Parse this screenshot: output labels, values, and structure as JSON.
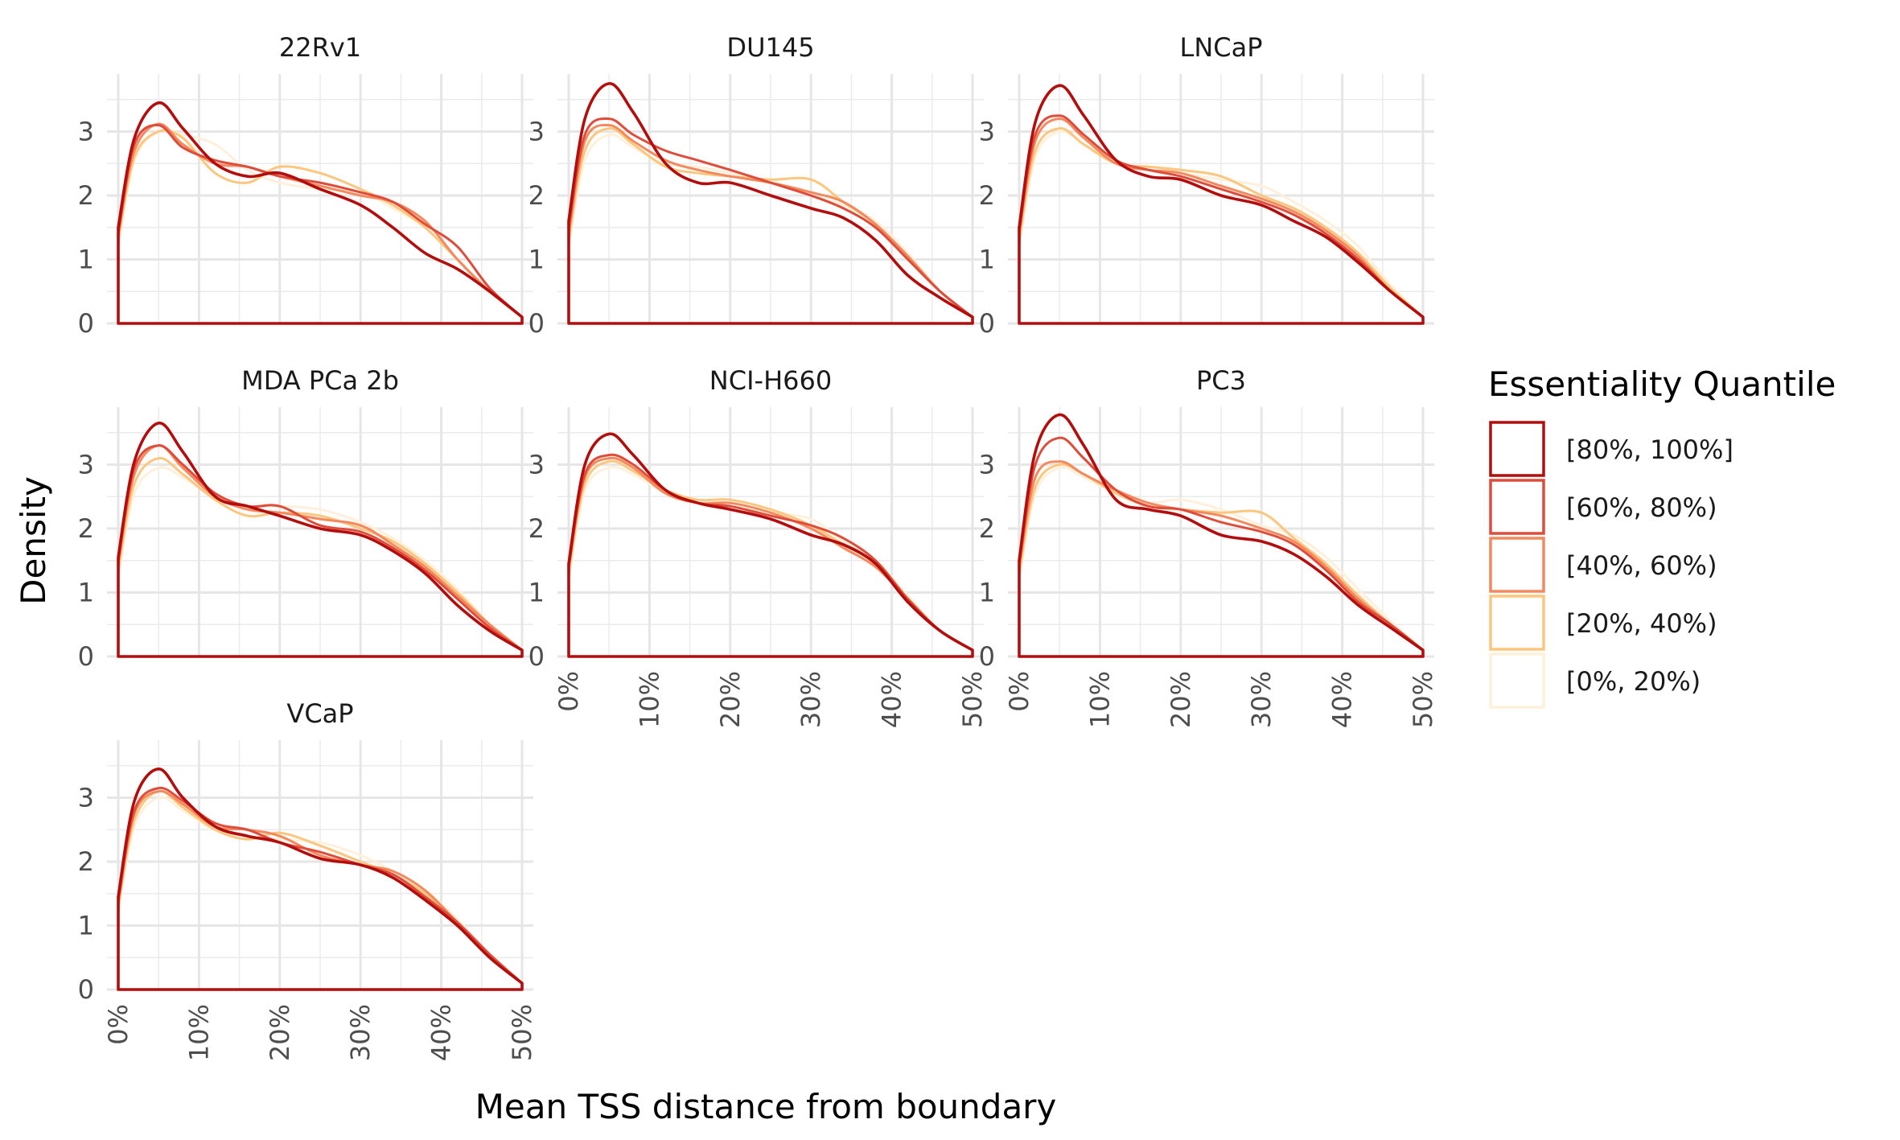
{
  "chart_data": {
    "type": "line",
    "xlabel": "Mean TSS distance from boundary",
    "ylabel": "Density",
    "xlim": [
      0,
      0.5
    ],
    "ylim": [
      0,
      3.9
    ],
    "x_ticks": [
      0,
      0.1,
      0.2,
      0.3,
      0.4,
      0.5
    ],
    "x_tick_labels": [
      "0%",
      "10%",
      "20%",
      "30%",
      "40%",
      "50%"
    ],
    "y_ticks": [
      0,
      1,
      2,
      3
    ],
    "y_tick_labels": [
      "0",
      "1",
      "2",
      "3"
    ],
    "grid": true,
    "legend": {
      "title": "Essentiality Quantile",
      "position": "right",
      "entries": [
        {
          "label": "[80%, 100%]",
          "color": "#b30d0d"
        },
        {
          "label": "[60%, 80%)",
          "color": "#df4c3a"
        },
        {
          "label": "[40%, 60%)",
          "color": "#f3895d"
        },
        {
          "label": "[20%, 40%)",
          "color": "#fdc67d"
        },
        {
          "label": "[0%, 20%)",
          "color": "#fff0dc"
        }
      ]
    },
    "x": [
      0,
      0.02,
      0.05,
      0.08,
      0.12,
      0.16,
      0.2,
      0.25,
      0.3,
      0.34,
      0.38,
      0.42,
      0.46,
      0.5
    ],
    "panels": [
      {
        "title": "22Rv1",
        "series": [
          {
            "values": [
              1.5,
              2.9,
              3.45,
              3.05,
              2.5,
              2.3,
              2.35,
              2.1,
              1.85,
              1.5,
              1.1,
              0.85,
              0.5,
              0.1
            ]
          },
          {
            "values": [
              1.4,
              2.8,
              3.1,
              2.75,
              2.55,
              2.45,
              2.3,
              2.2,
              2.05,
              1.9,
              1.55,
              1.2,
              0.55,
              0.1
            ]
          },
          {
            "values": [
              1.4,
              2.7,
              3.12,
              2.8,
              2.5,
              2.45,
              2.3,
              2.15,
              2.0,
              1.9,
              1.6,
              1.0,
              0.5,
              0.1
            ]
          },
          {
            "values": [
              1.3,
              2.6,
              3.0,
              2.9,
              2.35,
              2.2,
              2.45,
              2.35,
              2.1,
              1.85,
              1.5,
              1.0,
              0.5,
              0.1
            ]
          },
          {
            "values": [
              1.2,
              2.55,
              3.0,
              2.95,
              2.8,
              2.4,
              2.2,
              2.1,
              2.05,
              1.8,
              1.5,
              1.0,
              0.5,
              0.1
            ]
          }
        ]
      },
      {
        "title": "DU145",
        "series": [
          {
            "values": [
              1.6,
              3.2,
              3.75,
              3.3,
              2.5,
              2.2,
              2.2,
              2.0,
              1.8,
              1.65,
              1.3,
              0.75,
              0.4,
              0.1
            ]
          },
          {
            "values": [
              1.5,
              2.95,
              3.2,
              2.95,
              2.7,
              2.55,
              2.4,
              2.2,
              2.0,
              1.8,
              1.5,
              1.0,
              0.5,
              0.1
            ]
          },
          {
            "values": [
              1.4,
              2.85,
              3.1,
              2.85,
              2.55,
              2.4,
              2.3,
              2.2,
              2.05,
              1.9,
              1.55,
              1.05,
              0.5,
              0.1
            ]
          },
          {
            "values": [
              1.3,
              2.7,
              3.05,
              2.8,
              2.45,
              2.35,
              2.3,
              2.25,
              2.25,
              1.9,
              1.55,
              1.05,
              0.5,
              0.1
            ]
          },
          {
            "values": [
              1.2,
              2.55,
              2.95,
              2.75,
              2.5,
              2.45,
              2.35,
              2.2,
              2.0,
              1.85,
              1.6,
              1.1,
              0.5,
              0.1
            ]
          }
        ]
      },
      {
        "title": "LNCaP",
        "series": [
          {
            "values": [
              1.5,
              3.15,
              3.72,
              3.25,
              2.55,
              2.3,
              2.25,
              2.0,
              1.85,
              1.6,
              1.35,
              0.95,
              0.5,
              0.1
            ]
          },
          {
            "values": [
              1.45,
              2.95,
              3.25,
              2.95,
              2.55,
              2.4,
              2.3,
              2.1,
              1.9,
              1.7,
              1.4,
              1.0,
              0.5,
              0.1
            ]
          },
          {
            "values": [
              1.4,
              2.85,
              3.2,
              2.9,
              2.5,
              2.4,
              2.35,
              2.15,
              1.95,
              1.75,
              1.45,
              1.05,
              0.5,
              0.1
            ]
          },
          {
            "values": [
              1.3,
              2.7,
              3.05,
              2.8,
              2.5,
              2.45,
              2.4,
              2.3,
              2.0,
              1.8,
              1.5,
              1.1,
              0.55,
              0.1
            ]
          },
          {
            "values": [
              1.2,
              2.6,
              3.0,
              2.8,
              2.5,
              2.4,
              2.35,
              2.25,
              2.15,
              1.9,
              1.6,
              1.2,
              0.6,
              0.1
            ]
          }
        ]
      },
      {
        "title": "MDA PCa 2b",
        "series": [
          {
            "values": [
              1.55,
              3.05,
              3.65,
              3.2,
              2.5,
              2.35,
              2.2,
              2.0,
              1.9,
              1.65,
              1.3,
              0.8,
              0.4,
              0.1
            ]
          },
          {
            "values": [
              1.5,
              2.95,
              3.3,
              3.0,
              2.55,
              2.35,
              2.35,
              2.05,
              1.95,
              1.7,
              1.35,
              0.9,
              0.45,
              0.1
            ]
          },
          {
            "values": [
              1.45,
              2.85,
              3.3,
              2.95,
              2.5,
              2.3,
              2.25,
              2.15,
              2.05,
              1.75,
              1.4,
              0.95,
              0.5,
              0.1
            ]
          },
          {
            "values": [
              1.35,
              2.7,
              3.1,
              2.85,
              2.45,
              2.2,
              2.25,
              2.2,
              2.0,
              1.8,
              1.45,
              1.0,
              0.5,
              0.1
            ]
          },
          {
            "values": [
              1.25,
              2.55,
              2.95,
              2.8,
              2.5,
              2.35,
              2.35,
              2.3,
              2.1,
              1.85,
              1.5,
              1.05,
              0.5,
              0.1
            ]
          }
        ]
      },
      {
        "title": "NCI-H660",
        "series": [
          {
            "values": [
              1.45,
              3.0,
              3.48,
              3.15,
              2.6,
              2.4,
              2.3,
              2.15,
              1.9,
              1.75,
              1.45,
              0.85,
              0.4,
              0.1
            ]
          },
          {
            "values": [
              1.4,
              2.85,
              3.15,
              3.0,
              2.6,
              2.4,
              2.35,
              2.2,
              2.05,
              1.85,
              1.5,
              0.9,
              0.4,
              0.1
            ]
          },
          {
            "values": [
              1.4,
              2.8,
              3.1,
              2.95,
              2.55,
              2.4,
              2.4,
              2.25,
              2.0,
              1.7,
              1.4,
              0.9,
              0.4,
              0.1
            ]
          },
          {
            "values": [
              1.3,
              2.7,
              3.05,
              2.9,
              2.6,
              2.45,
              2.45,
              2.3,
              2.05,
              1.75,
              1.45,
              0.9,
              0.4,
              0.1
            ]
          },
          {
            "values": [
              1.2,
              2.6,
              2.95,
              2.85,
              2.55,
              2.4,
              2.35,
              2.25,
              2.15,
              1.8,
              1.5,
              0.95,
              0.4,
              0.1
            ]
          }
        ]
      },
      {
        "title": "PC3",
        "series": [
          {
            "values": [
              1.5,
              3.2,
              3.78,
              3.3,
              2.45,
              2.3,
              2.2,
              1.9,
              1.8,
              1.6,
              1.25,
              0.8,
              0.45,
              0.1
            ]
          },
          {
            "values": [
              1.45,
              3.0,
              3.42,
              3.1,
              2.6,
              2.35,
              2.3,
              2.1,
              1.95,
              1.75,
              1.35,
              0.85,
              0.5,
              0.1
            ]
          },
          {
            "values": [
              1.4,
              2.8,
              3.05,
              2.85,
              2.6,
              2.4,
              2.3,
              2.2,
              2.0,
              1.8,
              1.4,
              0.9,
              0.5,
              0.1
            ]
          },
          {
            "values": [
              1.3,
              2.65,
              3.0,
              2.85,
              2.55,
              2.35,
              2.3,
              2.25,
              2.25,
              1.85,
              1.45,
              0.95,
              0.5,
              0.1
            ]
          },
          {
            "values": [
              1.2,
              2.55,
              2.95,
              2.8,
              2.55,
              2.4,
              2.45,
              2.3,
              2.05,
              1.9,
              1.55,
              1.05,
              0.55,
              0.1
            ]
          }
        ]
      },
      {
        "title": "VCaP",
        "series": [
          {
            "values": [
              1.45,
              2.95,
              3.45,
              3.0,
              2.55,
              2.4,
              2.3,
              2.05,
              1.95,
              1.75,
              1.4,
              1.0,
              0.5,
              0.1
            ]
          },
          {
            "values": [
              1.4,
              2.8,
              3.15,
              2.95,
              2.6,
              2.5,
              2.3,
              2.15,
              1.95,
              1.8,
              1.45,
              1.05,
              0.55,
              0.1
            ]
          },
          {
            "values": [
              1.35,
              2.75,
              3.1,
              2.9,
              2.55,
              2.5,
              2.4,
              2.1,
              1.95,
              1.85,
              1.55,
              1.05,
              0.55,
              0.1
            ]
          },
          {
            "values": [
              1.3,
              2.65,
              3.1,
              2.85,
              2.5,
              2.35,
              2.45,
              2.25,
              2.0,
              1.8,
              1.5,
              1.05,
              0.5,
              0.1
            ]
          },
          {
            "values": [
              1.2,
              2.55,
              3.0,
              2.8,
              2.5,
              2.4,
              2.35,
              2.3,
              2.1,
              1.85,
              1.55,
              1.1,
              0.55,
              0.1
            ]
          }
        ]
      }
    ]
  }
}
